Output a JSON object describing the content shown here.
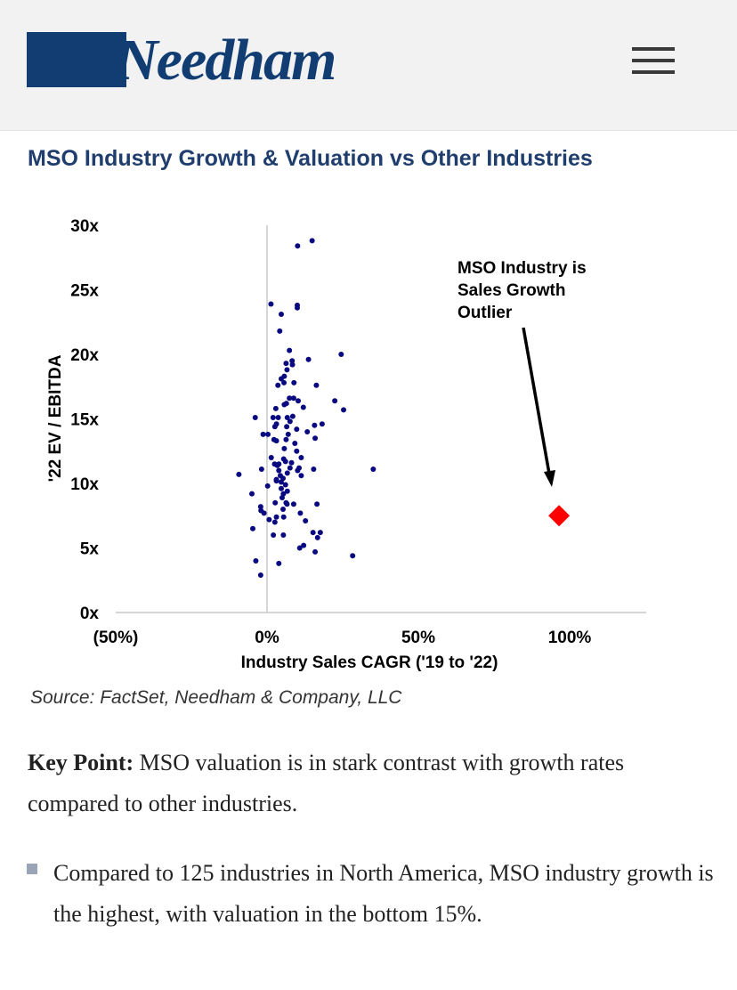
{
  "header": {
    "logo_text": "Needham",
    "menu_icon": "hamburger-menu-icon"
  },
  "title": "MSO Industry Growth & Valuation vs Other Industries",
  "chart_data": {
    "type": "scatter",
    "title": "MSO Industry Growth & Valuation vs Other Industries",
    "xlabel": "Industry Sales CAGR ('19 to '22)",
    "ylabel": "'22 EV / EBITDA",
    "xlim": [
      -50,
      125
    ],
    "ylim": [
      0,
      30
    ],
    "x_ticks": [
      {
        "v": -50,
        "label": "(50%)"
      },
      {
        "v": 0,
        "label": "0%"
      },
      {
        "v": 50,
        "label": "50%"
      },
      {
        "v": 100,
        "label": "100%"
      }
    ],
    "y_ticks": [
      {
        "v": 0,
        "label": "0x"
      },
      {
        "v": 5,
        "label": "5x"
      },
      {
        "v": 10,
        "label": "10x"
      },
      {
        "v": 15,
        "label": "15x"
      },
      {
        "v": 20,
        "label": "20x"
      },
      {
        "v": 25,
        "label": "25x"
      },
      {
        "v": 30,
        "label": "30x"
      }
    ],
    "series": [
      {
        "name": "Other Industries",
        "color": "#0a0a80",
        "points": [
          [
            7.4,
            16.6
          ],
          [
            8.8,
            16.6
          ],
          [
            10.3,
            16.4
          ],
          [
            6.4,
            16.2
          ],
          [
            5.7,
            16.1
          ],
          [
            22.4,
            16.4
          ],
          [
            12,
            15.9
          ],
          [
            25.3,
            15.7
          ],
          [
            2.9,
            15.8
          ],
          [
            -3.9,
            15.1
          ],
          [
            2,
            15.1
          ],
          [
            3.7,
            15.1
          ],
          [
            6.7,
            15.1
          ],
          [
            8.5,
            15.2
          ],
          [
            7.6,
            14.8
          ],
          [
            3.1,
            14.6
          ],
          [
            2.6,
            14.4
          ],
          [
            6.5,
            14.4
          ],
          [
            15.7,
            14.5
          ],
          [
            18.2,
            14.6
          ],
          [
            9.8,
            14.2
          ],
          [
            13.3,
            14
          ],
          [
            -1.3,
            13.8
          ],
          [
            0.3,
            13.8
          ],
          [
            7,
            13.8
          ],
          [
            15.9,
            13.5
          ],
          [
            2.3,
            13.4
          ],
          [
            3.1,
            13.3
          ],
          [
            6.3,
            13.4
          ],
          [
            9.2,
            13.1
          ],
          [
            5.7,
            12.7
          ],
          [
            9.8,
            12.5
          ],
          [
            1.4,
            12
          ],
          [
            5.5,
            11.9
          ],
          [
            11.3,
            12
          ],
          [
            6.1,
            11.7
          ],
          [
            8.1,
            11.6
          ],
          [
            2.5,
            11.5
          ],
          [
            3.9,
            11.5
          ],
          [
            3.4,
            11.4
          ],
          [
            -1.8,
            11.1
          ],
          [
            7.6,
            11.2
          ],
          [
            10.6,
            11.2
          ],
          [
            10.1,
            11
          ],
          [
            15.4,
            11.1
          ],
          [
            35.1,
            11.1
          ],
          [
            -9.3,
            10.7
          ],
          [
            3.9,
            11
          ],
          [
            6.7,
            10.8
          ],
          [
            4.4,
            10.6
          ],
          [
            5.3,
            10.4
          ],
          [
            11.3,
            10.6
          ],
          [
            3.1,
            10.3
          ],
          [
            4.7,
            10.1
          ],
          [
            3.1,
            10.2
          ],
          [
            6.1,
            9.9
          ],
          [
            0.2,
            9.8
          ],
          [
            4.7,
            9.6
          ],
          [
            6.7,
            9.4
          ],
          [
            -5,
            9.2
          ],
          [
            5.4,
            9.2
          ],
          [
            5,
            8.9
          ],
          [
            2.7,
            8.5
          ],
          [
            6.3,
            8.5
          ],
          [
            6.6,
            8.4
          ],
          [
            8.8,
            8.4
          ],
          [
            16.5,
            8.4
          ],
          [
            -2.1,
            8.2
          ],
          [
            -2,
            7.9
          ],
          [
            -1,
            7.7
          ],
          [
            5.3,
            8
          ],
          [
            11,
            7.7
          ],
          [
            3.1,
            7.4
          ],
          [
            5.5,
            7.4
          ],
          [
            0.7,
            7.2
          ],
          [
            2.6,
            7
          ],
          [
            12.7,
            7.1
          ],
          [
            -4.7,
            6.5
          ],
          [
            2.1,
            6
          ],
          [
            5.4,
            6
          ],
          [
            15.2,
            6.2
          ],
          [
            17.6,
            6.2
          ],
          [
            16.7,
            5.8
          ],
          [
            10.8,
            5
          ],
          [
            12.1,
            5.2
          ],
          [
            15.9,
            4.7
          ],
          [
            28.3,
            4.4
          ],
          [
            -3.7,
            4
          ],
          [
            3.9,
            3.8
          ],
          [
            -2.1,
            2.9
          ],
          [
            10.1,
            28.4
          ],
          [
            14.9,
            28.8
          ],
          [
            1.3,
            23.9
          ],
          [
            10,
            23.8
          ],
          [
            10,
            23.6
          ],
          [
            4.7,
            23.1
          ],
          [
            4.2,
            21.8
          ],
          [
            7.4,
            20.3
          ],
          [
            24.5,
            20
          ],
          [
            8.3,
            19.5
          ],
          [
            8.4,
            19.2
          ],
          [
            13.7,
            19.6
          ],
          [
            6.3,
            19.3
          ],
          [
            6.6,
            18.8
          ],
          [
            5.7,
            18.3
          ],
          [
            4.7,
            18.1
          ],
          [
            5.6,
            17.8
          ],
          [
            3.6,
            17.6
          ],
          [
            8.9,
            17.8
          ],
          [
            16.3,
            17.6
          ]
        ]
      },
      {
        "name": "MSO Industry",
        "color": "#ff0000",
        "marker": "diamond",
        "points": [
          [
            96.5,
            7.5
          ]
        ]
      }
    ],
    "annotation": {
      "lines": [
        "MSO Industry is",
        "Sales Growth",
        "Outlier"
      ]
    },
    "grid": false
  },
  "source": "Source: FactSet, Needham & Company, LLC",
  "key_point": {
    "label": "Key Point:",
    "text": " MSO valuation is in stark contrast with growth rates compared to other industries."
  },
  "bullets": [
    "Compared to 125 industries in North America, MSO industry growth is the highest, with valuation in the bottom 15%."
  ]
}
